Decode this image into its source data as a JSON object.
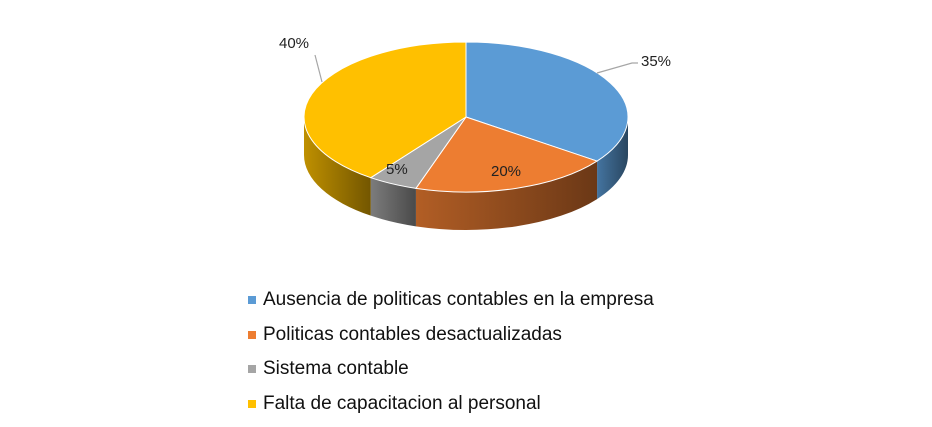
{
  "chart_data": {
    "type": "pie",
    "style": "3d",
    "categories": [
      "Ausencia de politicas contables en la empresa",
      "Politicas contables desactualizadas",
      "Sistema contable",
      "Falta de capacitacion al personal"
    ],
    "values": [
      35,
      20,
      5,
      40
    ],
    "data_labels": [
      "35%",
      "20%",
      "5%",
      "40%"
    ],
    "colors": [
      "#5B9BD5",
      "#ED7D31",
      "#A5A5A5",
      "#FFC000"
    ],
    "legend_position": "bottom"
  }
}
